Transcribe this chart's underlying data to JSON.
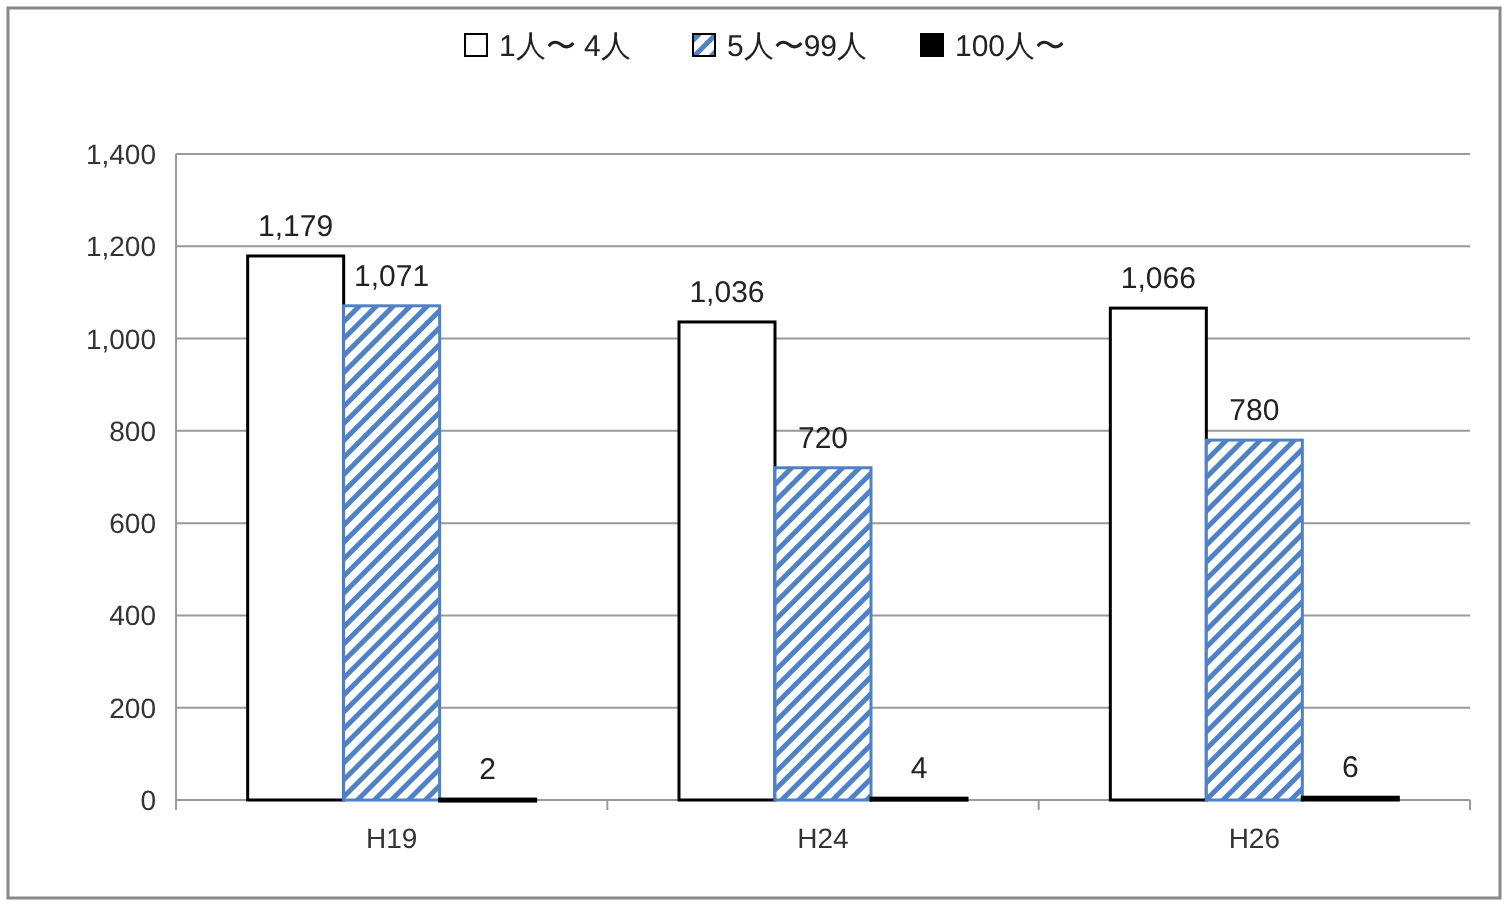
{
  "chart_data": {
    "type": "bar",
    "categories": [
      "H19",
      "H24",
      "H26"
    ],
    "series": [
      {
        "name": "1人〜 4人",
        "color": "#ffffff",
        "values": [
          1179,
          1036,
          1066
        ],
        "value_labels": [
          "1,179",
          "1,036",
          "1,066"
        ]
      },
      {
        "name": "5人〜99人",
        "color": "#4f81c7",
        "values": [
          1071,
          720,
          780
        ],
        "value_labels": [
          "1,071",
          "720",
          "780"
        ]
      },
      {
        "name": "100人〜",
        "color": "#000000",
        "values": [
          2,
          4,
          6
        ],
        "value_labels": [
          "2",
          "4",
          "6"
        ]
      }
    ],
    "ylim": [
      0,
      1400
    ],
    "yticks": [
      0,
      {
        "value": 200,
        "label": "200"
      },
      400,
      600,
      800,
      {
        "value": 1000,
        "label": "1,000"
      },
      {
        "value": 1200,
        "label": "1,200"
      },
      {
        "value": 1400,
        "label": "1,400"
      }
    ],
    "grid": "y",
    "legend": "top"
  }
}
